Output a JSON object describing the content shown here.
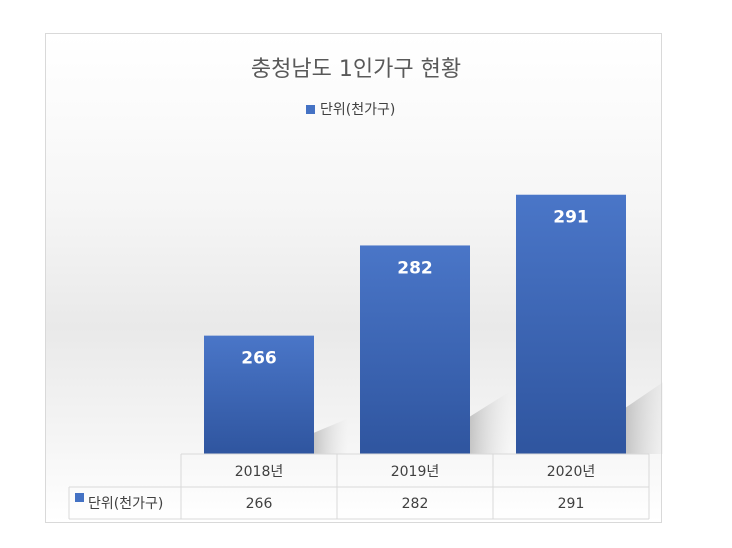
{
  "chart_data": {
    "type": "bar",
    "title": "충청남도 1인가구 현황",
    "categories": [
      "2018년",
      "2019년",
      "2020년"
    ],
    "series": [
      {
        "name": "단위(천가구)",
        "values": [
          266,
          282,
          291
        ],
        "color": "#4472c4"
      }
    ],
    "ylim": [
      245,
      300
    ],
    "data_labels": [
      "266",
      "282",
      "291"
    ],
    "legend_position": "top",
    "data_table": true,
    "grid": false,
    "colors": {
      "bar_top": "#4a76c8",
      "bar_bottom": "#2f559f",
      "table_border": "#d9d9d9"
    }
  }
}
